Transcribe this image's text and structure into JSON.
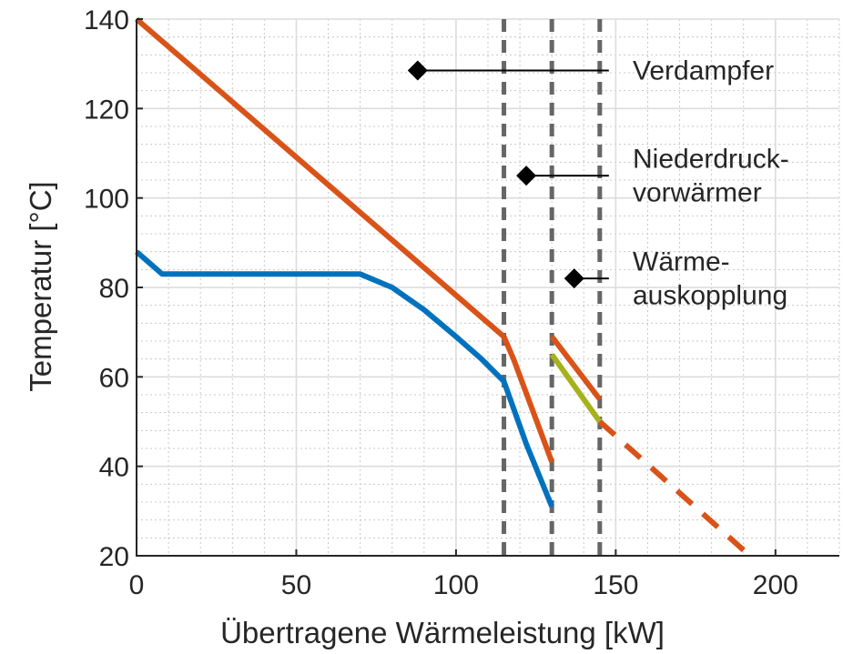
{
  "chart_data": {
    "type": "line",
    "xlabel": "Übertragene Wärmeleistung [kW]",
    "ylabel": "Temperatur [°C]",
    "xlim": [
      0,
      220
    ],
    "ylim": [
      20,
      140
    ],
    "xticks": [
      0,
      50,
      100,
      150,
      200
    ],
    "yticks": [
      20,
      40,
      60,
      80,
      100,
      120,
      140
    ],
    "grid": "major and minor",
    "colors": {
      "hot": "#d95319",
      "cold": "#0072bd",
      "green": "#a5b21a",
      "vline": "#666666",
      "marker": "#000000"
    },
    "series": [
      {
        "id": "hot-main",
        "style": "solid",
        "color": "#d95319",
        "x": [
          0,
          115
        ],
        "y": [
          140,
          69
        ]
      },
      {
        "id": "cold-main",
        "style": "solid",
        "color": "#0072bd",
        "x": [
          0,
          8,
          70,
          80,
          90,
          100,
          108,
          115,
          122,
          130
        ],
        "y": [
          88,
          83,
          83,
          80,
          75,
          69,
          64,
          59,
          45,
          31
        ]
      },
      {
        "id": "hot-ndv",
        "style": "solid",
        "color": "#d95319",
        "x": [
          115,
          118,
          130
        ],
        "y": [
          69,
          64,
          41
        ]
      },
      {
        "id": "hot-wa",
        "style": "solid",
        "color": "#d95319",
        "x": [
          130,
          145
        ],
        "y": [
          69,
          55
        ]
      },
      {
        "id": "green-wa",
        "style": "solid",
        "color": "#a5b21a",
        "x": [
          130,
          145
        ],
        "y": [
          65,
          50
        ]
      },
      {
        "id": "hot-dashed",
        "style": "dashed",
        "color": "#d95319",
        "x": [
          145,
          192
        ],
        "y": [
          50,
          20
        ]
      }
    ],
    "vlines": [
      115,
      130,
      145
    ],
    "annotations": [
      {
        "lines": [
          "Verdampfer"
        ],
        "marker": [
          88,
          128.5
        ],
        "line_to_x": 145
      },
      {
        "lines": [
          "Niederdruck-",
          "vorwärmer"
        ],
        "marker": [
          122,
          105
        ],
        "line_to_x": 145
      },
      {
        "lines": [
          "Wärme-",
          "auskopplung"
        ],
        "marker": [
          137,
          82
        ],
        "line_to_x": 145
      }
    ]
  }
}
